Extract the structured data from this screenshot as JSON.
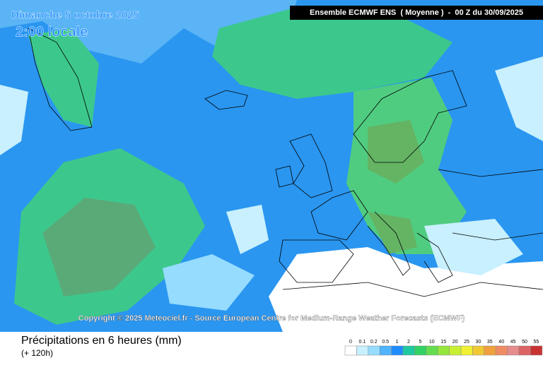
{
  "header": {
    "date": "Dimanche 5 octobre 2025",
    "time": "2:00 locale",
    "model": "Ensemble ECMWF ENS  ( Moyenne )  -  00 Z du 30/09/2025"
  },
  "copyright": "Copyright © 2025 Meteociel.fr - Source European Centre for Medium-Range Weather Forecasts (ECMWF)",
  "footer": {
    "title": "Précipitations en 6 heures (mm)",
    "subtitle": "(+ 120h)"
  },
  "legend": {
    "labels": [
      0,
      0.1,
      0.2,
      0.5,
      1,
      2,
      5,
      10,
      15,
      20,
      25,
      30,
      35,
      40,
      45,
      50,
      55
    ],
    "colors": [
      "#ffffff",
      "#c8f0ff",
      "#96dcff",
      "#50b4ff",
      "#1e8cff",
      "#1ec8a0",
      "#32d264",
      "#64dc50",
      "#96e63c",
      "#c8f032",
      "#f0f032",
      "#f0c832",
      "#f0a03c",
      "#f08c64",
      "#e68c8c",
      "#dc6464",
      "#c83232"
    ]
  }
}
